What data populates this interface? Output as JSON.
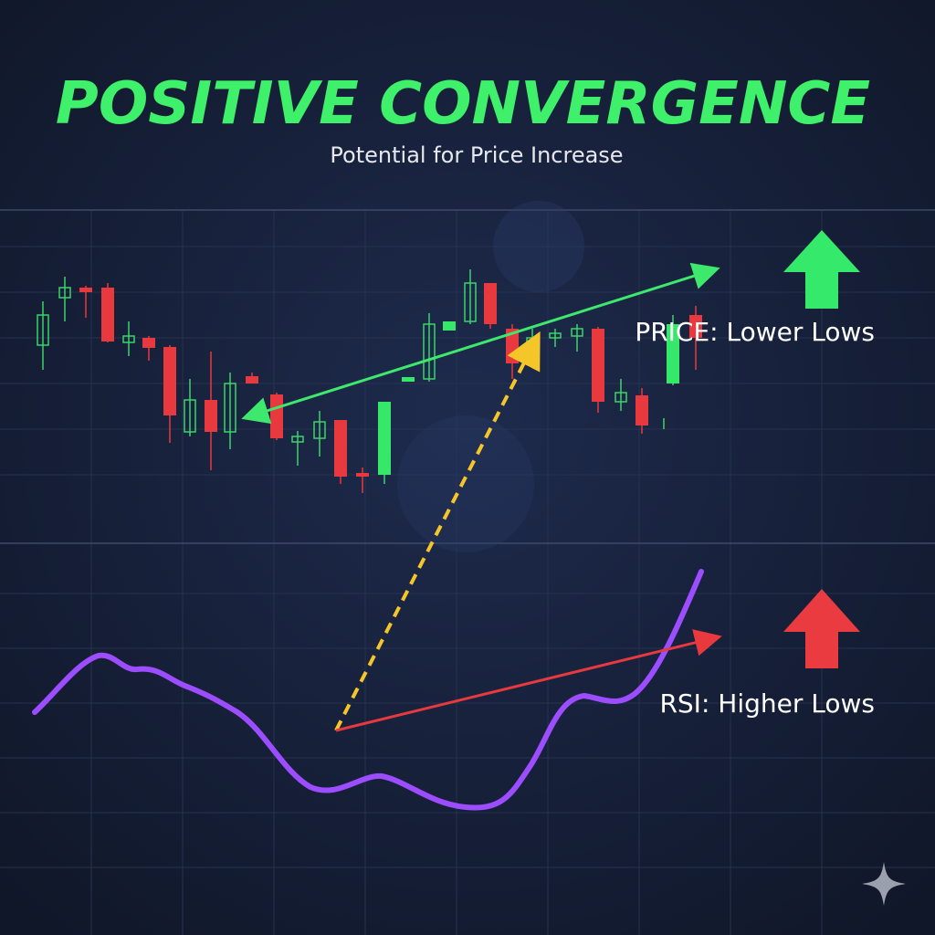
{
  "header": {
    "title": "POSITIVE CONVERGENCE",
    "subtitle": "Potential for Price Increase"
  },
  "labels": {
    "price": "PRICE: Lower Lows",
    "rsi": "RSI: Higher Lows"
  }
}
